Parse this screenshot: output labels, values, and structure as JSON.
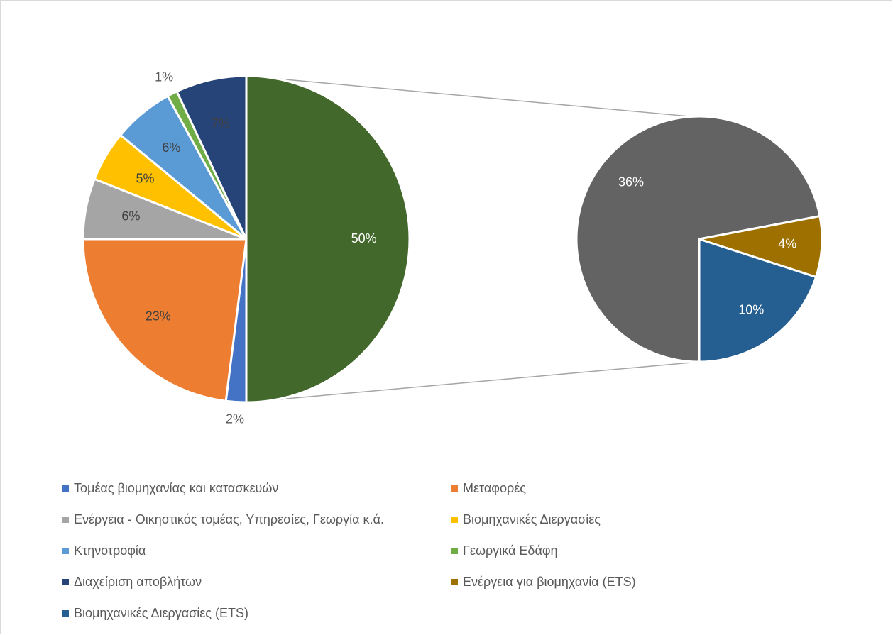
{
  "chart_data": {
    "type": "pie-of-pie",
    "categories": [
      "Τομέας βιομηχανίας και κατασκευών",
      "Μεταφορές",
      "Ενέργεια - Οικηστικός τομέας, Υπηρεσίες, Γεωργία κ.ά.",
      "Βιομηχανικές Διεργασίες",
      "Κτηνοτροφία",
      "Γεωργικά Εδάφη",
      "Διαχείριση αποβλήτων",
      "Ενέργεια για βιομηχανία (ETS)",
      "Βιομηχανικές Διεργασίες (ETS)",
      null
    ],
    "values": [
      2,
      23,
      6,
      5,
      6,
      1,
      7,
      4,
      10,
      36
    ],
    "value_labels": [
      "2%",
      "23%",
      "6%",
      "5%",
      "6%",
      "1%",
      "7%",
      "4%",
      "10%",
      "36%"
    ],
    "colors": [
      "#4472c4",
      "#ed7d31",
      "#a5a5a5",
      "#ffc000",
      "#5b9bd5",
      "#70ad47",
      "#264478",
      "#9e7000",
      "#255e91",
      "#636363"
    ],
    "secondary": [
      9,
      7,
      8
    ],
    "other": {
      "value": 50,
      "label": "50%",
      "color": "#43682b"
    }
  }
}
